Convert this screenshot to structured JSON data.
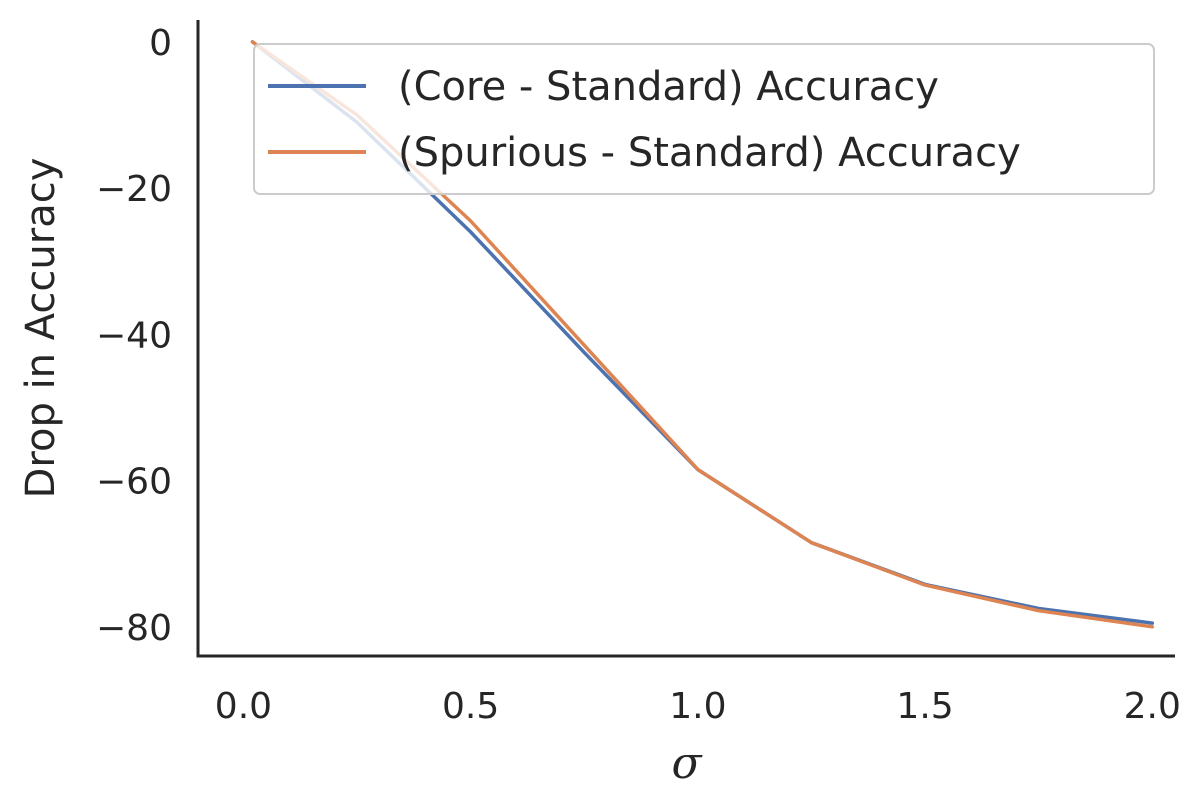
{
  "chart_data": {
    "type": "line",
    "xlabel": "σ",
    "ylabel": "Drop in Accuracy",
    "xlim": [
      -0.1,
      2.05
    ],
    "ylim": [
      -84,
      3
    ],
    "xticks": [
      0.0,
      0.5,
      1.0,
      1.5,
      2.0
    ],
    "xtick_labels": [
      "0.0",
      "0.5",
      "1.0",
      "1.5",
      "2.0"
    ],
    "yticks": [
      0,
      -20,
      -40,
      -60,
      -80
    ],
    "ytick_labels": [
      "0",
      "−20",
      "−40",
      "−60",
      "−80"
    ],
    "grid": false,
    "legend_position": "top-right",
    "x": [
      0.0,
      0.25,
      0.5,
      0.75,
      1.0,
      1.25,
      1.5,
      1.75,
      2.0
    ],
    "series": [
      {
        "name": "(Core - Standard) Accuracy",
        "color": "#4c72b0",
        "values": [
          0,
          -11,
          -26,
          -42.5,
          -58.5,
          -68.5,
          -74.2,
          -77.5,
          -79.5
        ]
      },
      {
        "name": "(Spurious - Standard) Accuracy",
        "color": "#dd8452",
        "values": [
          0,
          -10,
          -24.5,
          -41.5,
          -58.5,
          -68.5,
          -74.3,
          -77.8,
          -80.0
        ]
      }
    ]
  }
}
